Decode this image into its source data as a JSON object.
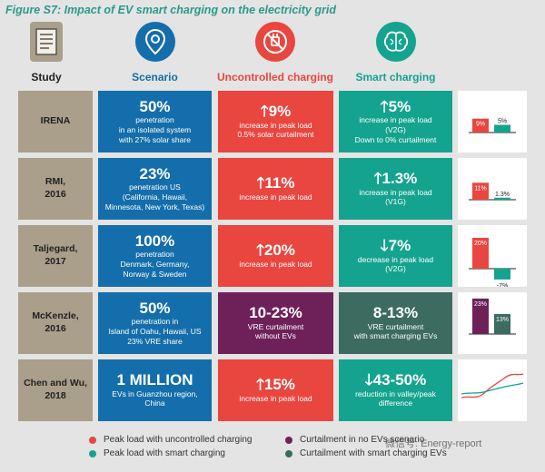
{
  "title": "Figure S7: Impact of EV smart charging on the electricity grid",
  "headers": {
    "study": "Study",
    "scenario": "Scenario",
    "uncontrolled": "Uncontrolled charging",
    "smart": "Smart charging"
  },
  "colors": {
    "red": "#e8463f",
    "teal": "#14a38f",
    "purple": "#6e2159",
    "darkgreen": "#3c6b60",
    "blue": "#146eab",
    "study": "#a99f8a"
  },
  "rows": [
    {
      "study": "IRENA",
      "scen_big": "50%",
      "scen_text": "penetration\nin an isolated system\nwith 27% solar share",
      "unc_big": "🡑9%",
      "unc_text": "increase in peak load\n0.5% solar curtailment",
      "smart_big": "🡑5%",
      "smart_text": "increase in peak load\n(V2G)\nDown to 0% curtailment",
      "bars": [
        {
          "label": "9%",
          "value": 9
        },
        {
          "label": "5%",
          "value": 5
        }
      ]
    },
    {
      "study": "RMI,\n2016",
      "scen_big": "23%",
      "scen_text": "penetration US\n(California, Hawaii,\nMinnesota, New York, Texas)",
      "unc_big": "🡑11%",
      "unc_text": "increase in peak load",
      "smart_big": "🡑1.3%",
      "smart_text": "increase in peak load\n(V1G)",
      "bars": [
        {
          "label": "11%",
          "value": 11
        },
        {
          "label": "1.3%",
          "value": 1.3
        }
      ]
    },
    {
      "study": "Taljegard,\n2017",
      "scen_big": "100%",
      "scen_text": "penetration\nDenmark, Germany,\nNorway & Sweden",
      "unc_big": "🡑20%",
      "unc_text": "increase in peak load",
      "smart_big": "🡓7%",
      "smart_text": "decrease in peak load\n(V2G)",
      "bars": [
        {
          "label": "20%",
          "value": 20
        },
        {
          "label": "-7%",
          "value": -7
        }
      ]
    },
    {
      "study": "McKenzle,\n2016",
      "scen_big": "50%",
      "scen_text": "penetration in\nIsland of Oahu, Hawaii, US\n23% VRE share",
      "unc_big": "10-23%",
      "unc_text": "VRE curtailment\nwithout EVs",
      "smart_big": "8-13%",
      "smart_text": "VRE curtailment\nwith smart charging EVs",
      "bars": [
        {
          "label": "23%",
          "value": 23
        },
        {
          "label": "13%",
          "value": 13
        }
      ]
    },
    {
      "study": "Chen and Wu,\n2018",
      "scen_big": "1 MILLION",
      "scen_text": "EVs in Guanzhou region,\nChina",
      "unc_big": "🡑15%",
      "unc_text": "increase in peak load",
      "smart_big": "🡓43-50%",
      "smart_text": "reduction in valley/peak\ndifference",
      "bars": []
    }
  ],
  "legend": [
    {
      "label": "Peak load with uncontrolled charging",
      "color": "#e8463f"
    },
    {
      "label": "Peak load with smart charging",
      "color": "#14a38f"
    },
    {
      "label": "Curtailment in no EVs scenario",
      "color": "#6e2159"
    },
    {
      "label": "Curtailment with smart charging EVs",
      "color": "#3c6b60"
    }
  ],
  "watermark": "微信号: Energy-report"
}
